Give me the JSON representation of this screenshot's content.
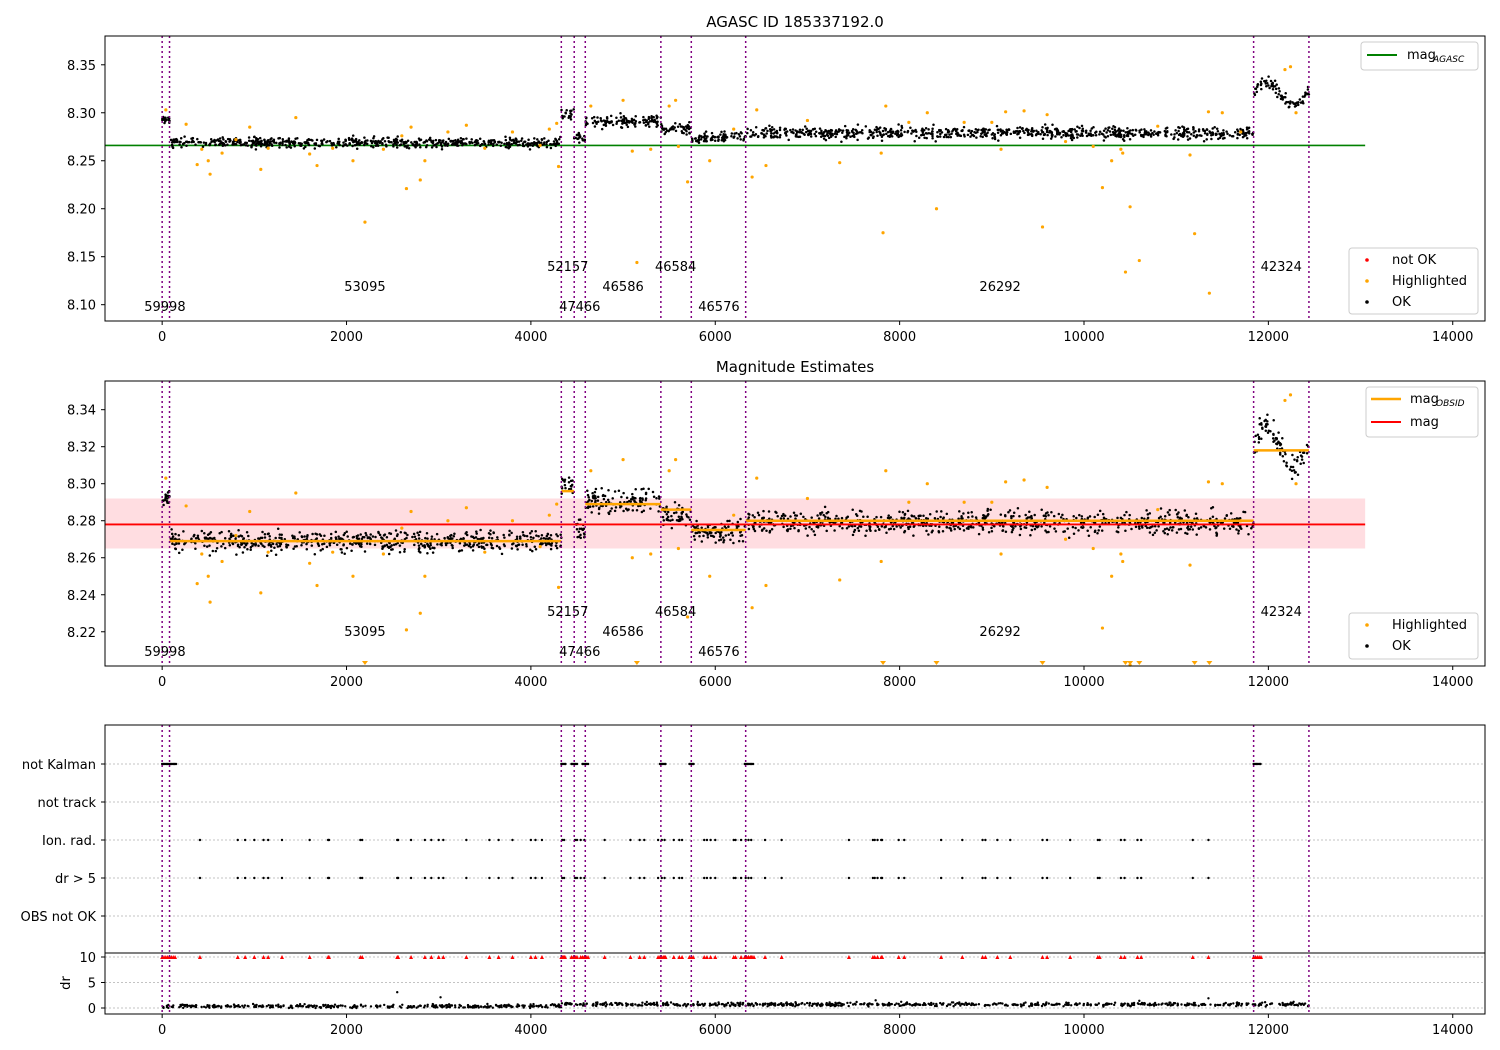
{
  "chart_data": [
    {
      "type": "scatter",
      "title": "AGASC ID 185337192.0",
      "xlim": [
        -620,
        14350
      ],
      "ylim": [
        8.083,
        8.38
      ],
      "xticks": [
        0,
        2000,
        4000,
        6000,
        8000,
        10000,
        12000,
        14000
      ],
      "yticks": [
        8.1,
        8.15,
        8.2,
        8.25,
        8.3,
        8.35
      ],
      "hlines": [
        {
          "name": "mag_AGASC",
          "y": 8.266,
          "x_end": 13050,
          "color": "#008000"
        }
      ],
      "segments": [
        {
          "obsid": "59998",
          "start": 0,
          "end": 80,
          "level": 8.292,
          "spread": 0.006
        },
        {
          "obsid": "53095",
          "start": 80,
          "end": 4330,
          "level": 8.269,
          "spread": 0.007
        },
        {
          "obsid": "52157",
          "start": 4330,
          "end": 4470,
          "level": 8.298,
          "spread": 0.008
        },
        {
          "obsid": "47466",
          "start": 4470,
          "end": 4590,
          "level": 8.275,
          "spread": 0.006
        },
        {
          "obsid": "46586",
          "start": 4590,
          "end": 5410,
          "level": 8.291,
          "spread": 0.008
        },
        {
          "obsid": "46584",
          "start": 5410,
          "end": 5740,
          "level": 8.283,
          "spread": 0.008
        },
        {
          "obsid": "46576",
          "start": 5740,
          "end": 6330,
          "level": 8.274,
          "spread": 0.007
        },
        {
          "obsid": "26292",
          "start": 6330,
          "end": 11840,
          "level": 8.279,
          "spread": 0.008
        },
        {
          "obsid": "42324",
          "start": 11840,
          "end": 12440,
          "level": 8.32,
          "spread": 0.008
        }
      ],
      "vlines": [
        0,
        80,
        4330,
        4470,
        4590,
        5410,
        5740,
        6330,
        11840,
        12440
      ],
      "obsid_labels": [
        {
          "text": "59998",
          "x": 30,
          "row": 3
        },
        {
          "text": "53095",
          "x": 2200,
          "row": 2
        },
        {
          "text": "52157",
          "x": 4400,
          "row": 1
        },
        {
          "text": "47466",
          "x": 4530,
          "row": 3
        },
        {
          "text": "46586",
          "x": 5000,
          "row": 2
        },
        {
          "text": "46584",
          "x": 5570,
          "row": 1
        },
        {
          "text": "46576",
          "x": 6040,
          "row": 3
        },
        {
          "text": "26292",
          "x": 9090,
          "row": 2
        },
        {
          "text": "42324",
          "x": 12140,
          "row": 1
        }
      ],
      "highlighted": [
        [
          40,
          8.303
        ],
        [
          260,
          8.288
        ],
        [
          380,
          8.246
        ],
        [
          430,
          8.262
        ],
        [
          500,
          8.25
        ],
        [
          520,
          8.236
        ],
        [
          650,
          8.258
        ],
        [
          800,
          8.272
        ],
        [
          950,
          8.285
        ],
        [
          1070,
          8.241
        ],
        [
          1150,
          8.263
        ],
        [
          1450,
          8.295
        ],
        [
          1600,
          8.257
        ],
        [
          1680,
          8.245
        ],
        [
          1850,
          8.263
        ],
        [
          2070,
          8.25
        ],
        [
          2200,
          8.186
        ],
        [
          2400,
          8.262
        ],
        [
          2600,
          8.276
        ],
        [
          2650,
          8.221
        ],
        [
          2700,
          8.285
        ],
        [
          2800,
          8.23
        ],
        [
          2850,
          8.25
        ],
        [
          3100,
          8.28
        ],
        [
          3300,
          8.287
        ],
        [
          3500,
          8.263
        ],
        [
          3800,
          8.28
        ],
        [
          4100,
          8.266
        ],
        [
          4200,
          8.283
        ],
        [
          4280,
          8.289
        ],
        [
          4300,
          8.244
        ],
        [
          4650,
          8.307
        ],
        [
          5000,
          8.313
        ],
        [
          5100,
          8.26
        ],
        [
          5150,
          8.144
        ],
        [
          5300,
          8.262
        ],
        [
          5500,
          8.307
        ],
        [
          5570,
          8.313
        ],
        [
          5600,
          8.265
        ],
        [
          5700,
          8.228
        ],
        [
          5940,
          8.25
        ],
        [
          6200,
          8.283
        ],
        [
          6400,
          8.233
        ],
        [
          6450,
          8.303
        ],
        [
          6550,
          8.245
        ],
        [
          7000,
          8.292
        ],
        [
          7350,
          8.248
        ],
        [
          7800,
          8.258
        ],
        [
          7820,
          8.175
        ],
        [
          7850,
          8.307
        ],
        [
          8100,
          8.29
        ],
        [
          8300,
          8.3
        ],
        [
          8400,
          8.2
        ],
        [
          8700,
          8.29
        ],
        [
          9000,
          8.29
        ],
        [
          9100,
          8.262
        ],
        [
          9150,
          8.301
        ],
        [
          9350,
          8.302
        ],
        [
          9600,
          8.298
        ],
        [
          9550,
          8.181
        ],
        [
          9800,
          8.27
        ],
        [
          10100,
          8.265
        ],
        [
          10200,
          8.222
        ],
        [
          10300,
          8.25
        ],
        [
          10400,
          8.262
        ],
        [
          10420,
          8.258
        ],
        [
          10450,
          8.134
        ],
        [
          10500,
          8.202
        ],
        [
          10600,
          8.146
        ],
        [
          10800,
          8.286
        ],
        [
          11150,
          8.256
        ],
        [
          11200,
          8.174
        ],
        [
          11350,
          8.301
        ],
        [
          11360,
          8.112
        ],
        [
          11500,
          8.3
        ],
        [
          11700,
          8.28
        ],
        [
          12180,
          8.345
        ],
        [
          12240,
          8.348
        ],
        [
          12300,
          8.3
        ]
      ],
      "legend": [
        {
          "label": "not OK",
          "color": "#ff0000",
          "kind": "dot"
        },
        {
          "label": "Highlighted",
          "color": "#ffa500",
          "kind": "dot"
        },
        {
          "label": "OK",
          "color": "#000000",
          "kind": "dot"
        }
      ],
      "legend_top": {
        "label": "mag",
        "subscript": "AGASC",
        "color": "#008000"
      }
    },
    {
      "type": "scatter",
      "title": "Magnitude Estimates",
      "xlim": [
        -620,
        14350
      ],
      "ylim": [
        8.2015,
        8.3555
      ],
      "xticks": [
        0,
        2000,
        4000,
        6000,
        8000,
        10000,
        12000,
        14000
      ],
      "yticks": [
        8.22,
        8.24,
        8.26,
        8.28,
        8.3,
        8.32,
        8.34
      ],
      "mag_line": {
        "y": 8.278,
        "band": [
          8.265,
          8.292
        ],
        "x_end": 13050,
        "color": "#ff0000"
      },
      "obsid_means": [
        {
          "start": 80,
          "end": 4330,
          "y": 8.269
        },
        {
          "start": 4330,
          "end": 4470,
          "y": 8.296
        },
        {
          "start": 4590,
          "end": 5410,
          "y": 8.289
        },
        {
          "start": 5410,
          "end": 5740,
          "y": 8.286
        },
        {
          "start": 5740,
          "end": 6330,
          "y": 8.275
        },
        {
          "start": 6330,
          "end": 11840,
          "y": 8.28
        },
        {
          "start": 11840,
          "end": 12440,
          "y": 8.318
        }
      ],
      "out_of_range_markers": [
        2200,
        5150,
        7820,
        8400,
        9550,
        10450,
        10500,
        10600,
        11200,
        11360
      ],
      "legend": [
        {
          "label": "Highlighted",
          "color": "#ffa500",
          "kind": "dot"
        },
        {
          "label": "OK",
          "color": "#000000",
          "kind": "dot"
        }
      ],
      "legend_top": [
        {
          "label": "mag",
          "subscript": "OBSID",
          "color": "#ffa500"
        },
        {
          "label": "mag",
          "subscript": "",
          "color": "#ff0000"
        }
      ]
    },
    {
      "type": "scatter",
      "title": "",
      "xlim": [
        -620,
        14350
      ],
      "xticks": [
        0,
        2000,
        4000,
        6000,
        8000,
        10000,
        12000,
        14000
      ],
      "flag_rows": [
        "not Kalman",
        "not track",
        "Ion. rad.",
        "dr > 5",
        "OBS not OK"
      ],
      "dr_yticks": [
        0,
        5,
        10
      ],
      "dr_ylabel": "dr",
      "not_kalman_ranges": [
        [
          0,
          150
        ],
        [
          4330,
          4380
        ],
        [
          4440,
          4500
        ],
        [
          4560,
          4620
        ],
        [
          5400,
          5470
        ],
        [
          5720,
          5770
        ],
        [
          6320,
          6420
        ],
        [
          11840,
          11920
        ]
      ],
      "ion_rad_x": [
        410,
        820,
        900,
        1000,
        1100,
        1150,
        1300,
        1600,
        1800,
        1810,
        2150,
        2170,
        2550,
        2560,
        2700,
        2850,
        2920,
        3000,
        3050,
        3300,
        3550,
        3650,
        3800,
        4000,
        4050,
        4120,
        4340,
        4360,
        4480,
        4500,
        4540,
        4580,
        4800,
        5080,
        5180,
        5230,
        5380,
        5420,
        5450,
        5550,
        5610,
        5640,
        5880,
        5910,
        5950,
        6000,
        6200,
        6220,
        6280,
        6330,
        6360,
        6390,
        6540,
        6720,
        7450,
        7710,
        7730,
        7760,
        7800,
        7810,
        7990,
        8050,
        8450,
        8680,
        8900,
        8930,
        9060,
        9200,
        9550,
        9600,
        9850,
        10150,
        10170,
        10400,
        10440,
        10580,
        10620,
        11180,
        11350
      ]
    }
  ]
}
